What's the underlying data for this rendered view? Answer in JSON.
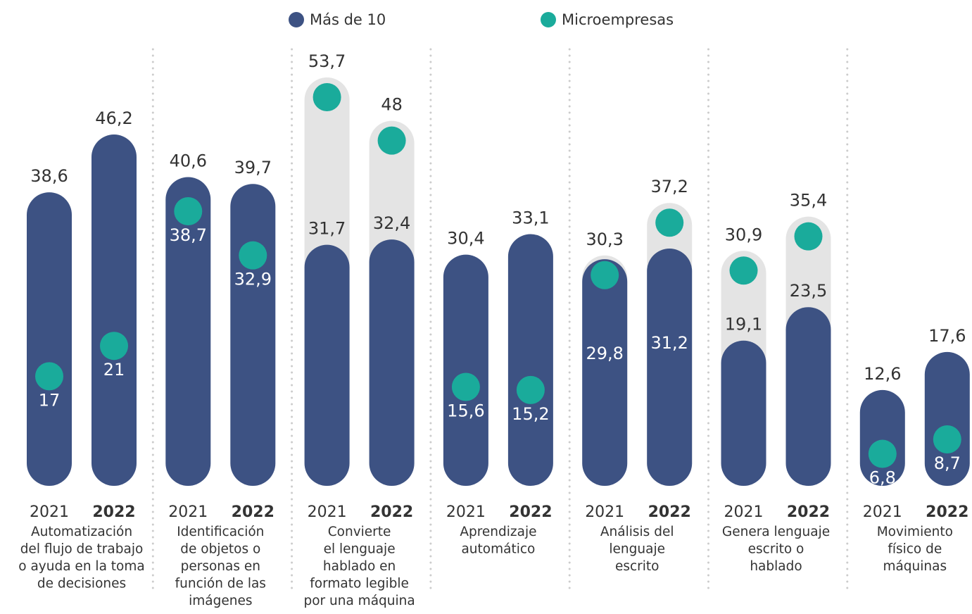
{
  "chart_data": {
    "type": "capsule-dot",
    "years": [
      "2021",
      "2022"
    ],
    "groups": [
      [
        "Automatización",
        "del flujo de trabajo",
        "o ayuda en la toma",
        "de decisiones"
      ],
      [
        "Identificación",
        "de objetos o",
        "personas en",
        "función de las",
        "imágenes"
      ],
      [
        "Convierte",
        "el lenguaje",
        "hablado en",
        "formato legible",
        "por una máquina"
      ],
      [
        "Aprendizaje",
        "automático"
      ],
      [
        "Análisis del",
        "lenguaje",
        "escrito"
      ],
      [
        "Genera lenguaje",
        "escrito o",
        "hablado"
      ],
      [
        "Movimiento",
        "físico de",
        "máquinas"
      ]
    ],
    "series": [
      {
        "name": "Más de 10",
        "color": "#3d5283",
        "values": [
          [
            38.6,
            46.2
          ],
          [
            40.6,
            39.7
          ],
          [
            31.7,
            32.4
          ],
          [
            30.4,
            33.1
          ],
          [
            29.8,
            31.2
          ],
          [
            19.1,
            23.5
          ],
          [
            12.6,
            17.6
          ]
        ],
        "value_labels": [
          [
            "38,6",
            "46,2"
          ],
          [
            "40,6",
            "39,7"
          ],
          [
            "31,7",
            "32,4"
          ],
          [
            "30,4",
            "33,1"
          ],
          [
            "29,8",
            "31,2"
          ],
          [
            "19,1",
            "23,5"
          ],
          [
            "12,6",
            "17,6"
          ]
        ]
      },
      {
        "name": "Microempresas",
        "color": "#1aab9b",
        "values": [
          [
            17,
            21
          ],
          [
            38.7,
            32.9
          ],
          [
            53.7,
            48
          ],
          [
            15.6,
            15.2
          ],
          [
            30.3,
            37.2
          ],
          [
            30.9,
            35.4
          ],
          [
            6.8,
            8.7
          ]
        ],
        "value_labels": [
          [
            "17",
            "21"
          ],
          [
            "38,7",
            "32,9"
          ],
          [
            "53,7",
            "48"
          ],
          [
            "15,6",
            "15,2"
          ],
          [
            "30,3",
            "37,2"
          ],
          [
            "30,9",
            "35,4"
          ],
          [
            "6,8",
            "8,7"
          ]
        ]
      }
    ],
    "ylim": [
      0,
      60
    ]
  }
}
